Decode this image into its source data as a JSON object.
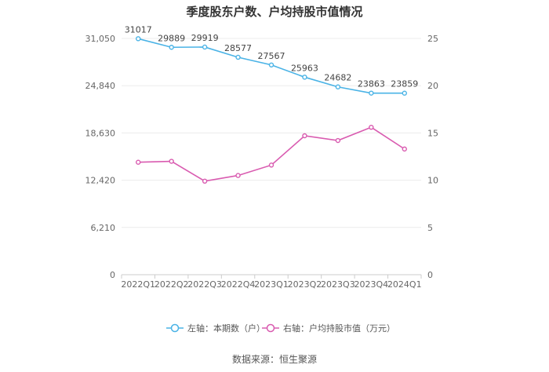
{
  "chart_data": {
    "type": "line",
    "title": "季度股东户数、户均持股市值情况",
    "source": "数据来源：恒生聚源",
    "categories": [
      "2022Q1",
      "2022Q2",
      "2022Q3",
      "2022Q4",
      "2023Q1",
      "2023Q2",
      "2023Q3",
      "2023Q4",
      "2024Q1"
    ],
    "left_axis": {
      "ylim": [
        0,
        31050
      ],
      "ticks": [
        0,
        6210,
        12420,
        18630,
        24840,
        31050
      ],
      "tick_labels": [
        "0",
        "6,210",
        "12,420",
        "18,630",
        "24,840",
        "31,050"
      ]
    },
    "right_axis": {
      "ylim": [
        0,
        25
      ],
      "ticks": [
        0,
        5,
        10,
        15,
        20,
        25
      ],
      "tick_labels": [
        "0",
        "5",
        "10",
        "15",
        "20",
        "25"
      ]
    },
    "series": [
      {
        "name": "左轴：本期数（户）",
        "axis": "left",
        "color": "#4ab3e6",
        "values": [
          31017,
          29889,
          29919,
          28577,
          27567,
          25963,
          24682,
          23863,
          23859
        ],
        "data_labels": [
          "31017",
          "29889",
          "29919",
          "28577",
          "27567",
          "25963",
          "24682",
          "23863",
          "23859"
        ]
      },
      {
        "name": "右轴：户均持股市值（万元）",
        "axis": "right",
        "color": "#d95bb0",
        "values": [
          11.9,
          12.0,
          9.9,
          10.5,
          11.6,
          14.7,
          14.2,
          15.6,
          13.3
        ]
      }
    ],
    "grid": true,
    "legend_position": "bottom"
  }
}
